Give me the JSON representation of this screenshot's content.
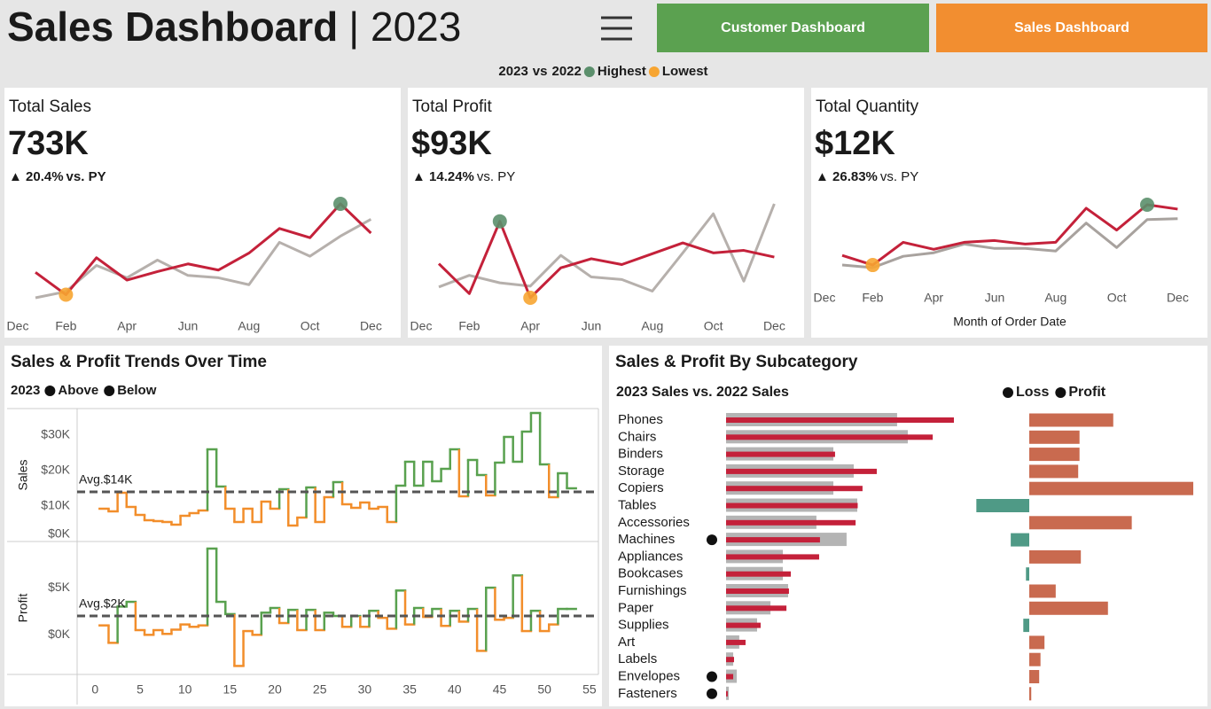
{
  "header": {
    "title": "Sales Dashboard",
    "year": "| 2023"
  },
  "nav": {
    "buttons": [
      {
        "label": "Customer Dashboard",
        "color": "#5ba150"
      },
      {
        "label": "Sales Dashboard",
        "color": "#f28e30"
      }
    ]
  },
  "legend": {
    "current": "2023",
    "current_color": "#c4213a",
    "vs": "vs",
    "previous": "2022",
    "previous_color": "#9a9490",
    "highest": "Highest",
    "highest_color": "#5b8f6c",
    "lowest": "Lowest",
    "lowest_color": "#f7a531"
  },
  "chart_data": [
    {
      "type": "kpi-line",
      "title": "Total Sales",
      "total": "733K",
      "change": "▲ 20.4%",
      "change_note": "vs. PY",
      "categories": [
        "Dec",
        null,
        "Feb",
        null,
        "Apr",
        null,
        "Jun",
        null,
        "Aug",
        null,
        "Oct",
        null,
        "Dec"
      ],
      "series": [
        {
          "color": "#c4213a",
          "values": [
            null,
            55.5,
            41,
            65,
            50.5,
            56,
            61,
            57,
            68,
            84,
            78,
            100,
            81
          ]
        },
        {
          "color": "#b6b0ac",
          "values": [
            null,
            39,
            43,
            60,
            52,
            63.5,
            53.5,
            52,
            47.5,
            75,
            66,
            79,
            90
          ]
        }
      ]
    },
    {
      "type": "kpi-line",
      "title": "Total Profit",
      "total": "$93K",
      "change": "▲ 14.24%",
      "change_note": "vs. PY",
      "categories": [
        "Dec",
        null,
        "Feb",
        null,
        "Apr",
        null,
        "Jun",
        null,
        "Aug",
        null,
        "Oct",
        null,
        "Dec"
      ],
      "series": [
        {
          "color": "#c4213a",
          "values": [
            null,
            6.3,
            2.7,
            11.4,
            2.2,
            5.8,
            6.9,
            6.2,
            7.5,
            8.8,
            7.6,
            7.9,
            7.1
          ]
        },
        {
          "color": "#b6b0ac",
          "values": [
            null,
            3.5,
            4.9,
            4.0,
            3.6,
            7.3,
            4.7,
            4.4,
            3.0,
            7.6,
            12.3,
            4.2,
            13.5
          ]
        }
      ]
    },
    {
      "type": "kpi-line",
      "title": "Total Quantity",
      "total": "$12K",
      "change": "▲ 26.83%",
      "change_note": "vs. PY",
      "x_label": "Month of Order Date",
      "categories": [
        "Dec",
        null,
        "Feb",
        null,
        "Apr",
        null,
        "Jun",
        null,
        "Aug",
        null,
        "Oct",
        null,
        "Dec"
      ],
      "series": [
        {
          "color": "#c4213a",
          "values": [
            null,
            810,
            700,
            960,
            880,
            960,
            980,
            940,
            960,
            1350,
            1100,
            1390,
            1340
          ]
        },
        {
          "color": "#a8a29e",
          "values": [
            null,
            700,
            670,
            800,
            840,
            940,
            890,
            890,
            860,
            1180,
            900,
            1220,
            1230
          ]
        }
      ]
    },
    {
      "type": "step",
      "title": "Sales & Profit Trends Over Time",
      "legend": {
        "label": "2023",
        "above": "Above",
        "below": "Below"
      },
      "above_color": "#59a14f",
      "below_color": "#f28e2b",
      "x": [
        1,
        2,
        3,
        4,
        5,
        6,
        7,
        8,
        9,
        10,
        11,
        12,
        13,
        14,
        15,
        16,
        17,
        18,
        19,
        20,
        21,
        22,
        23,
        24,
        25,
        26,
        27,
        28,
        29,
        30,
        31,
        32,
        33,
        34,
        35,
        36,
        37,
        38,
        39,
        40,
        41,
        42,
        43,
        44,
        45,
        46,
        47,
        48,
        49,
        50,
        51,
        52,
        53
      ],
      "xlim": [
        -2,
        56
      ],
      "xticks": [
        0,
        5,
        10,
        15,
        20,
        25,
        30,
        35,
        40,
        45,
        50,
        55
      ],
      "panels": [
        {
          "y_label": "Sales",
          "ylim": [
            0,
            37500
          ],
          "yticks": [
            {
              "value": 0,
              "label": "$0K"
            },
            {
              "value": 10000,
              "label": "$10K"
            },
            {
              "value": 20000,
              "label": "$20K"
            },
            {
              "value": 30000,
              "label": "$30K"
            }
          ],
          "avg": 14000,
          "avg_label": "Avg.$14K",
          "values": [
            9250,
            8500,
            13750,
            9750,
            7500,
            6000,
            5750,
            5500,
            4750,
            7250,
            8000,
            8750,
            26000,
            15500,
            9250,
            5500,
            9250,
            5500,
            11250,
            9250,
            14750,
            4500,
            6750,
            15250,
            5500,
            12500,
            16750,
            10500,
            9500,
            11000,
            9250,
            9750,
            5500,
            15750,
            22500,
            15750,
            22500,
            17000,
            20500,
            26000,
            12750,
            23000,
            18750,
            13000,
            22250,
            29500,
            22500,
            31000,
            36250,
            21750,
            12500,
            19250,
            15000
          ]
        },
        {
          "y_label": "Profit",
          "ylim": [
            -4200,
            9900
          ],
          "yticks": [
            {
              "value": 0,
              "label": "$0K"
            },
            {
              "value": 5000,
              "label": "$5K"
            }
          ],
          "avg": 2000,
          "avg_label": "Avg.$2K",
          "values": [
            1000,
            -850,
            3000,
            3500,
            500,
            0,
            500,
            100,
            550,
            1100,
            850,
            1000,
            9150,
            3500,
            2200,
            -3300,
            400,
            0,
            2350,
            2850,
            1250,
            2650,
            500,
            2650,
            500,
            2350,
            2000,
            850,
            2000,
            850,
            2550,
            1800,
            650,
            4700,
            1100,
            2850,
            1900,
            2750,
            950,
            2550,
            1400,
            2750,
            -1700,
            5000,
            1600,
            1800,
            6300,
            400,
            2550,
            400,
            1100,
            2750,
            2750
          ]
        }
      ]
    },
    {
      "type": "subcategory-bars",
      "title": "Sales & Profit By Subcategory",
      "subtitle": "2023 Sales vs. 2022 Sales",
      "legend": {
        "loss": "Loss",
        "profit": "Profit"
      },
      "indicator_color": "#111111",
      "categories": [
        "Phones",
        "Chairs",
        "Binders",
        "Storage",
        "Copiers",
        "Tables",
        "Accessories",
        "Machines",
        "Appliances",
        "Bookcases",
        "Furnishings",
        "Paper",
        "Supplies",
        "Art",
        "Labels",
        "Envelopes",
        "Fasteners"
      ],
      "series": [
        {
          "color": "#b4b4b4",
          "values": [
            81600,
            86700,
            51200,
            60900,
            51200,
            62600,
            43100,
            57500,
            27100,
            27100,
            29600,
            21200,
            14800,
            6300,
            3400,
            5100,
            1300
          ]
        },
        {
          "color": "#c4213a",
          "values": [
            108700,
            98600,
            52000,
            71900,
            65100,
            62800,
            61800,
            44800,
            44400,
            30900,
            30000,
            28800,
            16500,
            9300,
            3800,
            3400,
            800
          ]
        }
      ],
      "profit": {
        "positive_color": "#c96a4f",
        "negative_color": "#4f9a86",
        "values": [
          12700,
          7600,
          7600,
          7400,
          24800,
          -8000,
          15500,
          -2800,
          7800,
          -500,
          4000,
          11900,
          -900,
          2300,
          1700,
          1500,
          300
        ]
      }
    }
  ]
}
